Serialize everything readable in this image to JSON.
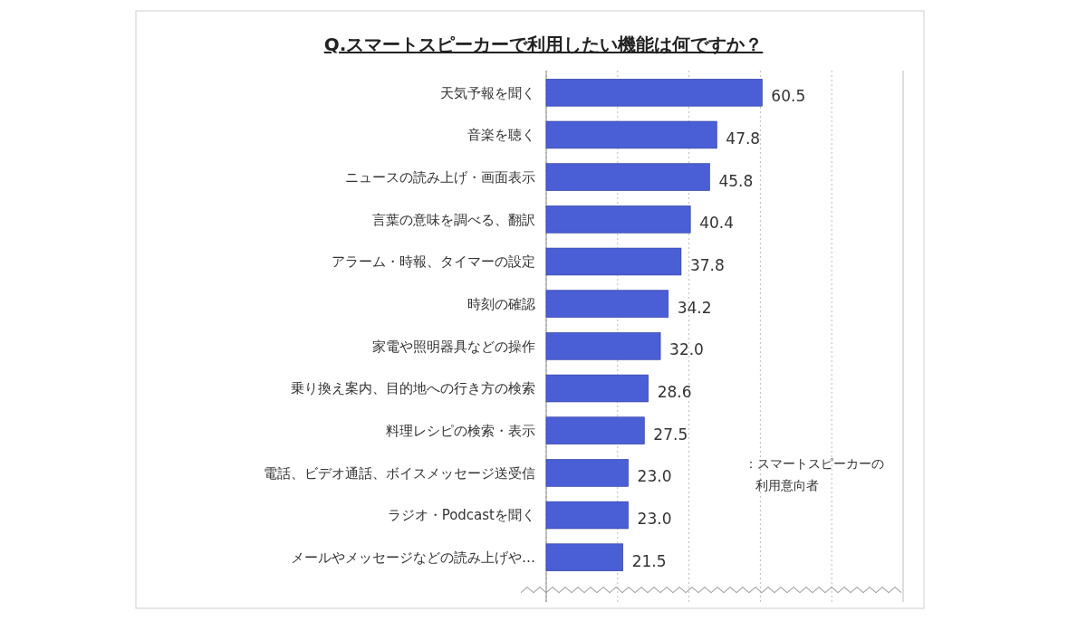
{
  "chart_data": {
    "type": "bar",
    "orientation": "horizontal",
    "title": "Q.スマートスピーカーで利用したい機能は何ですか？",
    "categories": [
      "天気予報を聞く",
      "音楽を聴く",
      "ニュースの読み上げ・画面表示",
      "言葉の意味を調べる、翻訳",
      "アラーム・時報、タイマーの設定",
      "時刻の確認",
      "家電や照明器具などの操作",
      "乗り換え案内、目的地への行き方の検索",
      "料理レシピの検索・表示",
      "電話、ビデオ通話、ボイスメッセージ送受信",
      "ラジオ・Podcastを聞く",
      "メールやメッセージなどの読み上げや…"
    ],
    "values": [
      60.5,
      47.8,
      45.8,
      40.4,
      37.8,
      34.2,
      32.0,
      28.6,
      27.5,
      23.0,
      23.0,
      21.5
    ],
    "value_labels": [
      "60.5",
      "47.8",
      "45.8",
      "40.4",
      "37.8",
      "34.2",
      "32.0",
      "28.6",
      "27.5",
      "23.0",
      "23.0",
      "21.5"
    ],
    "color": "#4a5ed6",
    "xlim": [
      0,
      100
    ],
    "xticks": [
      {
        "value": 0,
        "label": null
      },
      {
        "value": 20,
        "label": null
      },
      {
        "value": 40,
        "label": null
      },
      {
        "value": 60,
        "label": null
      },
      {
        "value": 80,
        "label": null
      },
      {
        "value": 100,
        "label": null
      }
    ],
    "grid": "x",
    "tick_labels": "y",
    "annotations": [
      "：スマートスピーカーの利用意向者"
    ]
  }
}
